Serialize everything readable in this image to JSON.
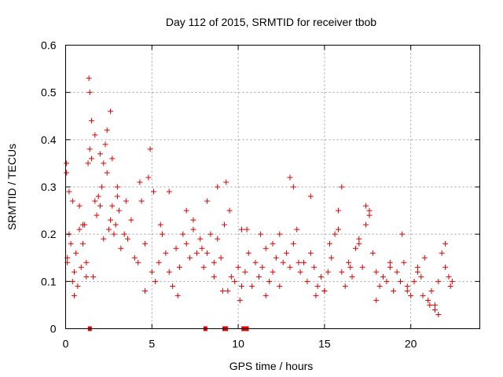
{
  "chart_data": {
    "type": "scatter",
    "title": "Day 112 of 2015, SRMTID for receiver tbob",
    "xlabel": "GPS time / hours",
    "ylabel": "SRMTID / TECUs",
    "xlim": [
      0,
      24
    ],
    "ylim": [
      0,
      0.6
    ],
    "xticks": [
      0,
      5,
      10,
      15,
      20
    ],
    "yticks": [
      0,
      0.1,
      0.2,
      0.3,
      0.4,
      0.5,
      0.6
    ],
    "xtick_labels": [
      "0",
      "5",
      "10",
      "15",
      "20"
    ],
    "ytick_labels": [
      "0",
      "0.1",
      "0.2",
      "0.3",
      "0.4",
      "0.5",
      "0.6"
    ],
    "grid": true,
    "marker": "plus",
    "color": "#e00000",
    "series": [
      {
        "name": "SRMTID",
        "x": [
          0.05,
          0.1,
          0.2,
          0.3,
          0.4,
          0.5,
          0.6,
          0.7,
          0.8,
          0.9,
          1.0,
          1.1,
          1.2,
          1.3,
          1.4,
          1.5,
          1.6,
          1.7,
          1.8,
          1.9,
          2.0,
          2.1,
          2.2,
          2.3,
          2.4,
          2.5,
          2.6,
          2.7,
          2.8,
          2.9,
          3.0,
          3.2,
          3.4,
          3.6,
          3.8,
          4.0,
          4.2,
          4.4,
          4.6,
          4.8,
          5.0,
          5.2,
          5.4,
          5.6,
          5.8,
          6.0,
          6.2,
          6.4,
          6.6,
          6.8,
          7.0,
          7.2,
          7.4,
          7.6,
          7.8,
          8.0,
          8.2,
          8.4,
          8.6,
          8.8,
          9.0,
          9.2,
          9.4,
          9.6,
          9.8,
          10.0,
          10.2,
          10.4,
          10.6,
          10.8,
          11.0,
          11.2,
          11.4,
          11.6,
          11.8,
          12.0,
          12.2,
          12.4,
          12.6,
          12.8,
          13.0,
          13.2,
          13.4,
          13.6,
          13.8,
          14.0,
          14.2,
          14.4,
          14.6,
          14.8,
          15.0,
          15.2,
          15.4,
          15.6,
          15.8,
          16.0,
          16.2,
          16.4,
          16.6,
          16.8,
          17.0,
          17.2,
          17.4,
          17.6,
          17.8,
          18.0,
          18.2,
          18.4,
          18.6,
          18.8,
          19.0,
          19.2,
          19.4,
          19.6,
          19.8,
          20.0,
          20.2,
          20.4,
          20.6,
          20.8,
          21.0,
          21.2,
          21.4,
          21.6,
          21.8,
          22.0,
          22.2,
          22.4,
          0.05,
          0.2,
          0.5,
          0.8,
          1.35,
          1.4,
          1.5,
          1.7,
          2.0,
          2.4,
          2.6,
          2.7,
          3.0,
          3.5,
          4.3,
          4.9,
          5.1,
          6.0,
          7.0,
          7.4,
          8.2,
          8.8,
          9.3,
          10.2,
          11.3,
          12.0,
          13.0,
          13.2,
          14.2,
          15.0,
          15.8,
          16.0,
          17.0,
          17.4,
          17.6,
          19.5,
          20.7,
          21.4,
          21.6,
          22.0,
          0.1,
          0.4,
          1.0,
          1.2,
          2.2,
          3.1,
          4.6,
          5.5,
          6.5,
          7.9,
          8.6,
          9.1,
          9.5,
          10.1,
          10.5,
          11.6,
          12.4,
          13.5,
          14.5,
          15.3,
          16.5,
          18.0,
          18.8,
          19.8,
          20.4,
          21.1,
          22.3
        ],
        "y": [
          0.33,
          0.15,
          0.2,
          0.18,
          0.27,
          0.12,
          0.16,
          0.09,
          0.21,
          0.13,
          0.18,
          0.22,
          0.14,
          0.35,
          0.38,
          0.36,
          0.11,
          0.27,
          0.24,
          0.28,
          0.26,
          0.3,
          0.35,
          0.39,
          0.42,
          0.21,
          0.23,
          0.26,
          0.2,
          0.22,
          0.28,
          0.17,
          0.2,
          0.19,
          0.23,
          0.15,
          0.14,
          0.27,
          0.18,
          0.32,
          0.12,
          0.1,
          0.14,
          0.2,
          0.16,
          0.12,
          0.09,
          0.17,
          0.13,
          0.2,
          0.18,
          0.15,
          0.21,
          0.16,
          0.19,
          0.13,
          0.16,
          0.2,
          0.14,
          0.19,
          0.15,
          0.22,
          0.08,
          0.11,
          0.1,
          0.13,
          0.09,
          0.12,
          0.16,
          0.09,
          0.14,
          0.11,
          0.13,
          0.17,
          0.1,
          0.12,
          0.15,
          0.09,
          0.14,
          0.16,
          0.13,
          0.18,
          0.21,
          0.12,
          0.14,
          0.1,
          0.16,
          0.13,
          0.09,
          0.11,
          0.08,
          0.12,
          0.15,
          0.2,
          0.25,
          0.12,
          0.09,
          0.14,
          0.11,
          0.17,
          0.18,
          0.13,
          0.22,
          0.25,
          0.16,
          0.12,
          0.09,
          0.11,
          0.1,
          0.13,
          0.08,
          0.12,
          0.1,
          0.14,
          0.09,
          0.07,
          0.1,
          0.13,
          0.11,
          0.15,
          0.06,
          0.08,
          0.05,
          0.1,
          0.16,
          0.13,
          0.11,
          0.1,
          0.35,
          0.29,
          0.07,
          0.26,
          0.53,
          0.5,
          0.44,
          0.41,
          0.37,
          0.33,
          0.46,
          0.36,
          0.3,
          0.27,
          0.31,
          0.38,
          0.29,
          0.29,
          0.25,
          0.23,
          0.27,
          0.3,
          0.31,
          0.21,
          0.2,
          0.18,
          0.32,
          0.3,
          0.28,
          0.08,
          0.21,
          0.3,
          0.19,
          0.26,
          0.24,
          0.2,
          0.07,
          0.04,
          0.03,
          0.18,
          0.14,
          0.1,
          0.22,
          0.11,
          0.19,
          0.25,
          0.08,
          0.22,
          0.07,
          0.17,
          0.11,
          0.08,
          0.25,
          0.06,
          0.21,
          0.07,
          0.2,
          0.14,
          0.07,
          0.18,
          0.13,
          0.06,
          0.14,
          0.08,
          0.12,
          0.05,
          0.09
        ],
        "rug_x": [
          1.4,
          8.1,
          9.2,
          9.3,
          10.3,
          10.4,
          10.5
        ]
      }
    ]
  }
}
